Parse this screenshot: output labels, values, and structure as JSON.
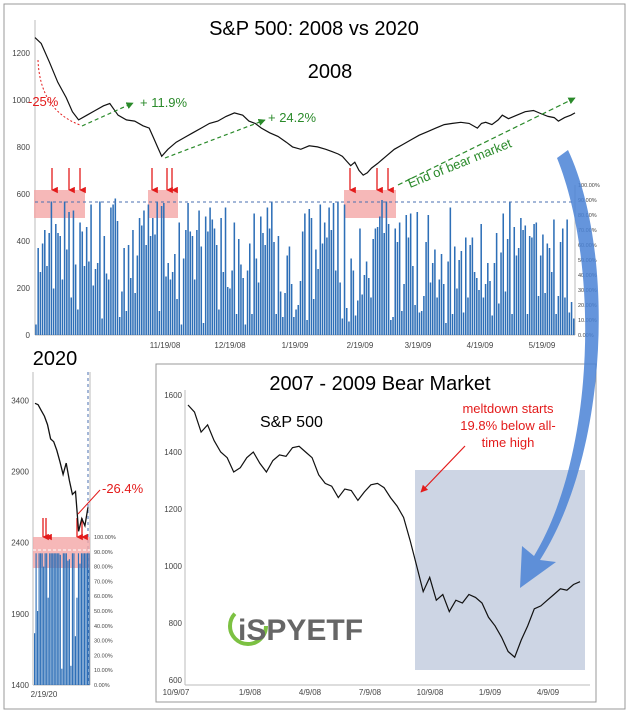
{
  "main_title": "S&P 500: 2008 vs 2020",
  "brand": {
    "logo_text": "iSPYETF"
  },
  "colors": {
    "bar": "#2e6fb7",
    "highlight": "#f4a6a6",
    "arrow_red": "#e31b1b",
    "green": "#2a8a2a",
    "shade": "#cdd5e4",
    "big_arrow": "#4a82d6"
  },
  "chart_data": [
    {
      "id": "2008",
      "type": "line+bar",
      "title": "2008",
      "x_ticks": [
        "11/19/08",
        "12/19/08",
        "1/19/09",
        "2/19/09",
        "3/19/09",
        "4/19/09",
        "5/19/09"
      ],
      "y_ticks": [
        "0",
        "200",
        "400",
        "600",
        "800",
        "1000",
        "1200"
      ],
      "y2_ticks": [
        "0.00%",
        "10.00%",
        "20.00%",
        "30.00%",
        "40.00%",
        "50.00%",
        "60.00%",
        "70.00%",
        "80.00%",
        "90.00%",
        "100.00%"
      ],
      "ylim": [
        0,
        1340
      ],
      "series": [
        {
          "type": "line",
          "points": [
            [
              0,
              1265
            ],
            [
              3,
              1240
            ],
            [
              7,
              1160
            ],
            [
              11,
              1075
            ],
            [
              15,
              1010
            ],
            [
              18,
              950
            ],
            [
              21,
              915
            ],
            [
              25,
              935
            ],
            [
              29,
              955
            ],
            [
              33,
              975
            ],
            [
              36,
              985
            ],
            [
              38,
              960
            ],
            [
              40,
              935
            ],
            [
              44,
              915
            ],
            [
              48,
              910
            ],
            [
              52,
              890
            ],
            [
              55,
              880
            ],
            [
              57,
              840
            ],
            [
              59,
              800
            ],
            [
              61,
              760
            ],
            [
              64,
              790
            ],
            [
              68,
              820
            ],
            [
              72,
              840
            ],
            [
              76,
              860
            ],
            [
              80,
              880
            ],
            [
              84,
              900
            ],
            [
              88,
              910
            ],
            [
              92,
              930
            ],
            [
              96,
              945
            ],
            [
              100,
              935
            ],
            [
              103,
              910
            ],
            [
              106,
              900
            ],
            [
              109,
              880
            ],
            [
              113,
              860
            ],
            [
              117,
              845
            ],
            [
              121,
              820
            ],
            [
              124,
              800
            ],
            [
              128,
              790
            ],
            [
              132,
              805
            ],
            [
              136,
              800
            ],
            [
              140,
              790
            ],
            [
              143,
              780
            ],
            [
              146,
              770
            ],
            [
              148,
              760
            ],
            [
              150,
              740
            ],
            [
              152,
              720
            ],
            [
              154,
              735
            ],
            [
              156,
              700
            ],
            [
              158,
              680
            ],
            [
              160,
              690
            ],
            [
              162,
              710
            ],
            [
              165,
              730
            ],
            [
              169,
              760
            ],
            [
              173,
              790
            ],
            [
              177,
              810
            ],
            [
              181,
              830
            ],
            [
              185,
              850
            ],
            [
              189,
              865
            ],
            [
              193,
              880
            ],
            [
              197,
              895
            ],
            [
              201,
              900
            ],
            [
              205,
              905
            ],
            [
              209,
              900
            ],
            [
              213,
              880
            ],
            [
              215,
              900
            ],
            [
              217,
              905
            ],
            [
              220,
              895
            ],
            [
              223,
              915
            ],
            [
              225,
              935
            ],
            [
              228,
              920
            ],
            [
              232,
              935
            ],
            [
              236,
              950
            ],
            [
              240,
              955
            ],
            [
              244,
              940
            ],
            [
              247,
              930
            ],
            [
              250,
              925
            ],
            [
              252,
              910
            ],
            [
              255,
              925
            ],
            [
              258,
              935
            ],
            [
              260,
              945
            ]
          ]
        },
        {
          "type": "bar",
          "name": "",
          "values": [
            0.07,
            0.58,
            0.42,
            0.61,
            0.7,
            0.46,
            0.68,
            0.89,
            0.31,
            0.74,
            0.68,
            0.66,
            0.37,
            0.89,
            0.57,
            0.82,
            0.25,
            0.83,
            0.47,
            0.17,
            0.75,
            0.69,
            0.46,
            0.72,
            0.49,
            0.87,
            0.33,
            0.44,
            0.48,
            0.89,
            0.11,
            0.66,
            0.41,
            0.37,
            0.85,
            0.87,
            0.91,
            0.76,
            0.12,
            0.29,
            0.58,
            0.16,
            0.6,
            0.38,
            0.7,
            0.28,
            0.53,
            0.78,
            0.73,
            0.83,
            0.6,
            0.87,
            0.66,
            0.78,
            0.67,
            0.89,
            0.16,
            0.86,
            0.88,
            0.39,
            0.48,
            0.37,
            0.42,
            0.54,
            0.24,
            0.75,
            0.07,
            0.51,
            0.7,
            0.88,
            0.69,
            0.66,
            0.37,
            0.7,
            0.83,
            0.59,
            0.08,
            0.79,
            0.69,
            0.85,
            0.77,
            0.71,
            0.6,
            0.17,
            0.78,
            0.42,
            0.85,
            0.32,
            0.31,
            0.43,
            0.75,
            0.14,
            0.64,
            0.47,
            0.38,
            0.07,
            0.43,
            0.61,
            0.14,
            0.81,
            0.51,
            0.35,
            0.79,
            0.68,
            0.6,
            0.85,
            0.71,
            0.89,
            0.62,
            0.14,
            0.66,
            0.29,
            0.12,
            0.28,
            0.53,
            0.59,
            0.34,
            0.12,
            0.17,
            0.2,
            0.36,
            0.69,
            0.81,
            0.1,
            0.84,
            0.78,
            0.24,
            0.57,
            0.44,
            0.87,
            0.61,
            0.75,
            0.65,
            0.85,
            0.7,
            0.88,
            0.43,
            0.89,
            0.35,
            0.11,
            0.87,
            0.18,
            0.09,
            0.51,
            0.43,
            0.13,
            0.23,
            0.71,
            0.27,
            0.4,
            0.49,
            0.38,
            0.25,
            0.64,
            0.71,
            0.72,
            0.79,
            0.9,
            0.68,
            0.89,
            0.74,
            0.1,
            0.12,
            0.71,
            0.62,
            0.75,
            0.16,
            0.34,
            0.8,
            0.65,
            0.81,
            0.46,
            0.2,
            0.82,
            0.15,
            0.16,
            0.26,
            0.62,
            0.8,
            0.35,
            0.48,
            0.57,
            0.25,
            0.37,
            0.54,
            0.34,
            0.08,
            0.49,
            0.85,
            0.14,
            0.59,
            0.31,
            0.5,
            0.56,
            0.15,
            0.65,
            0.25,
            0.6,
            0.65,
            0.42,
            0.38,
            0.3,
            0.74,
            0.25,
            0.34,
            0.48,
            0.36,
            0.13,
            0.48,
            0.68,
            0.21,
            0.55,
            0.81,
            0.29,
            0.64,
            0.89,
            0.14,
            0.72,
            0.53,
            0.58,
            0.78,
            0.7,
            0.73,
            0.14,
            0.66,
            0.65,
            0.74,
            0.75,
            0.26,
            0.53,
            0.67,
            0.28,
            0.61,
            0.58,
            0.42,
            0.77,
            0.14,
            0.26,
            0.62,
            0.71,
            0.25,
            0.77,
            0.15,
            0.22,
            0.11
          ]
        }
      ],
      "annotations": [
        {
          "text": "-25%",
          "color": "#e31b1b"
        },
        {
          "text": "+ 11.9%",
          "color": "#2a8a2a"
        },
        {
          "text": "+ 24.2%",
          "color": "#2a8a2a"
        },
        {
          "text": "End of bear market",
          "color": "#2a8a2a"
        }
      ]
    },
    {
      "id": "2020",
      "type": "line+bar",
      "title": "2020",
      "x_ticks": [
        "2/19/20"
      ],
      "y_ticks": [
        "1400",
        "1900",
        "2400",
        "2900",
        "3400"
      ],
      "y2_ticks": [
        "0.00%",
        "10.00%",
        "20.00%",
        "30.00%",
        "40.00%",
        "50.00%",
        "60.00%",
        "70.00%",
        "80.00%",
        "90.00%",
        "100.00%"
      ],
      "ylim": [
        1400,
        3600
      ],
      "series": [
        {
          "type": "line",
          "points": [
            [
              0,
              3380
            ],
            [
              1,
              3370
            ],
            [
              2,
              3330
            ],
            [
              3,
              3290
            ],
            [
              4,
              3230
            ],
            [
              5,
              3130
            ],
            [
              6,
              3110
            ],
            [
              7,
              3050
            ],
            [
              8,
              2970
            ],
            [
              9,
              2880
            ],
            [
              10,
              2960
            ],
            [
              11,
              2840
            ],
            [
              12,
              2740
            ],
            [
              13,
              2760
            ],
            [
              14,
              2480
            ],
            [
              15,
              2570
            ],
            [
              16,
              2520
            ],
            [
              17,
              2650
            ]
          ]
        },
        {
          "type": "bar",
          "name": "",
          "values": [
            0.35,
            0.89,
            0.5,
            0.89,
            0.89,
            0.89,
            0.8,
            0.89,
            0.89,
            0.59,
            0.89,
            0.89,
            0.89,
            0.89,
            0.89,
            0.89,
            0.89,
            0.88,
            0.11,
            0.89,
            0.89,
            0.89,
            0.84,
            0.85,
            0.13,
            0.89,
            0.89,
            0.33,
            0.59,
            0.89,
            0.82,
            0.89,
            0.89,
            0.89,
            0.89,
            0.89,
            0.89
          ]
        }
      ],
      "annotations": [
        {
          "text": "-26.4%",
          "color": "#e31b1b"
        }
      ]
    },
    {
      "id": "2007-2009",
      "type": "line",
      "title": "2007 - 2009 Bear Market",
      "x_ticks": [
        "10/9/07",
        "1/9/08",
        "4/9/08",
        "7/9/08",
        "10/9/08",
        "1/9/09",
        "4/9/09"
      ],
      "y_ticks": [
        "600",
        "800",
        "1000",
        "1200",
        "1400",
        "1600"
      ],
      "ylim": [
        600,
        1600
      ],
      "series": [
        {
          "name": "S&P 500",
          "type": "line",
          "points": [
            [
              0,
              1565
            ],
            [
              10,
              1540
            ],
            [
              20,
              1470
            ],
            [
              30,
              1495
            ],
            [
              40,
              1440
            ],
            [
              50,
              1400
            ],
            [
              60,
              1380
            ],
            [
              70,
              1330
            ],
            [
              80,
              1345
            ],
            [
              90,
              1380
            ],
            [
              100,
              1400
            ],
            [
              110,
              1360
            ],
            [
              120,
              1330
            ],
            [
              130,
              1370
            ],
            [
              140,
              1390
            ],
            [
              150,
              1385
            ],
            [
              160,
              1415
            ],
            [
              170,
              1420
            ],
            [
              180,
              1400
            ],
            [
              190,
              1380
            ],
            [
              200,
              1320
            ],
            [
              210,
              1290
            ],
            [
              220,
              1280
            ],
            [
              230,
              1240
            ],
            [
              240,
              1270
            ],
            [
              250,
              1265
            ],
            [
              260,
              1230
            ],
            [
              270,
              1260
            ],
            [
              280,
              1285
            ],
            [
              290,
              1290
            ],
            [
              300,
              1275
            ],
            [
              310,
              1240
            ],
            [
              320,
              1210
            ],
            [
              330,
              1170
            ],
            [
              340,
              1090
            ],
            [
              350,
              1000
            ],
            [
              360,
              910
            ],
            [
              370,
              960
            ],
            [
              380,
              880
            ],
            [
              390,
              900
            ],
            [
              400,
              840
            ],
            [
              410,
              880
            ],
            [
              420,
              870
            ],
            [
              430,
              900
            ],
            [
              440,
              890
            ],
            [
              450,
              870
            ],
            [
              460,
              820
            ],
            [
              470,
              790
            ],
            [
              480,
              750
            ],
            [
              490,
              700
            ],
            [
              500,
              680
            ],
            [
              510,
              740
            ],
            [
              520,
              790
            ],
            [
              530,
              850
            ],
            [
              540,
              860
            ],
            [
              550,
              880
            ],
            [
              560,
              900
            ],
            [
              570,
              920
            ],
            [
              580,
              915
            ],
            [
              590,
              935
            ],
            [
              600,
              945
            ]
          ]
        }
      ],
      "annotations": [
        {
          "text": "meltdown starts"
        },
        {
          "text": "19.8% below all-"
        },
        {
          "text": "time high"
        }
      ]
    }
  ]
}
